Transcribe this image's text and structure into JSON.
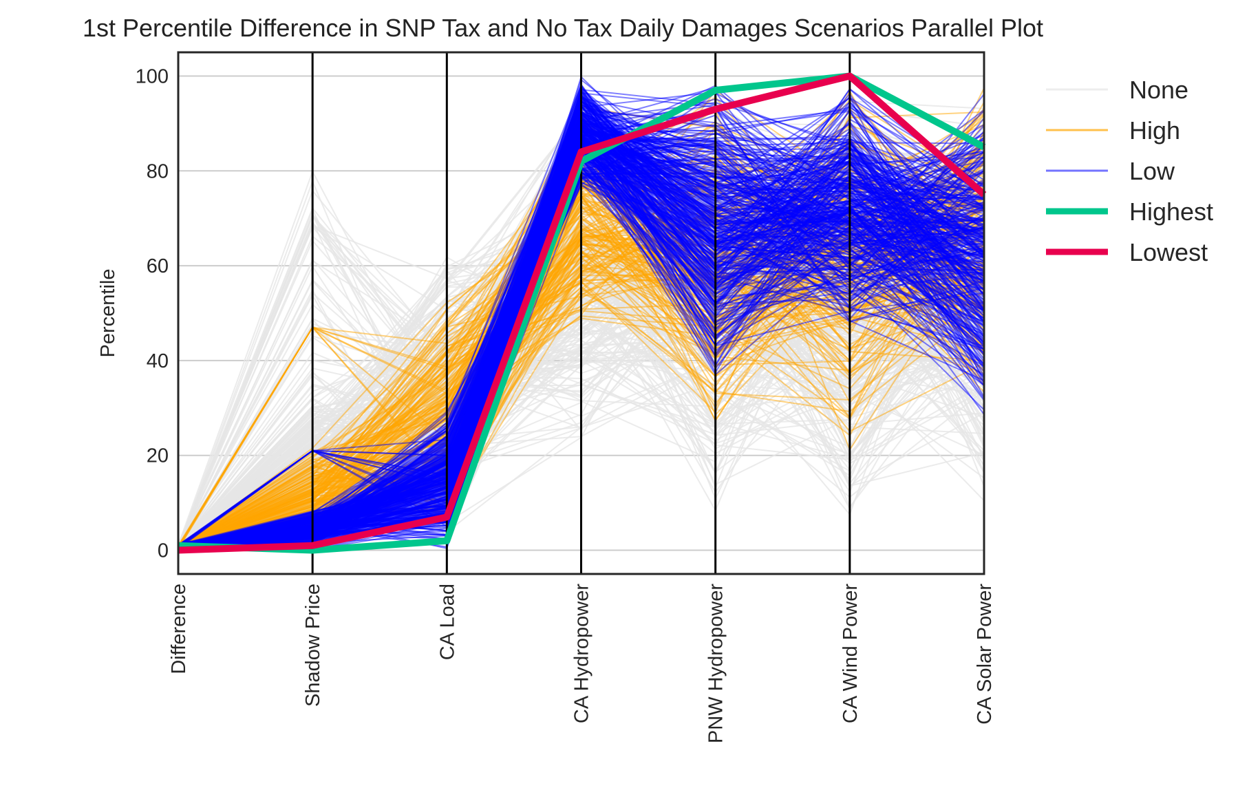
{
  "chart_data": {
    "type": "parallel",
    "title": "1st Percentile Difference in SNP Tax and No Tax Daily Damages Scenarios Parallel Plot",
    "ylabel": "Percentile",
    "ylim": [
      -5,
      105
    ],
    "yticks": [
      0,
      20,
      40,
      60,
      80,
      100
    ],
    "grid": "horizontal",
    "legend_position": "outside-right",
    "categories": [
      "Difference",
      "Shadow Price",
      "CA Load",
      "CA Hydropower",
      "PNW Hydropower",
      "CA Wind Power",
      "CA Solar Power"
    ],
    "series": [
      {
        "name": "None",
        "color": "#e6e6e6",
        "style": "many-lines"
      },
      {
        "name": "High",
        "color": "#ffa500",
        "style": "many-lines"
      },
      {
        "name": "Low",
        "color": "#0000ff",
        "style": "many-lines"
      },
      {
        "name": "Highest",
        "color": "#00c68c",
        "values": [
          1,
          0,
          2,
          82,
          97,
          100,
          85
        ]
      },
      {
        "name": "Lowest",
        "color": "#e8004e",
        "values": [
          0,
          1,
          7,
          84,
          93,
          100,
          75
        ]
      }
    ]
  }
}
